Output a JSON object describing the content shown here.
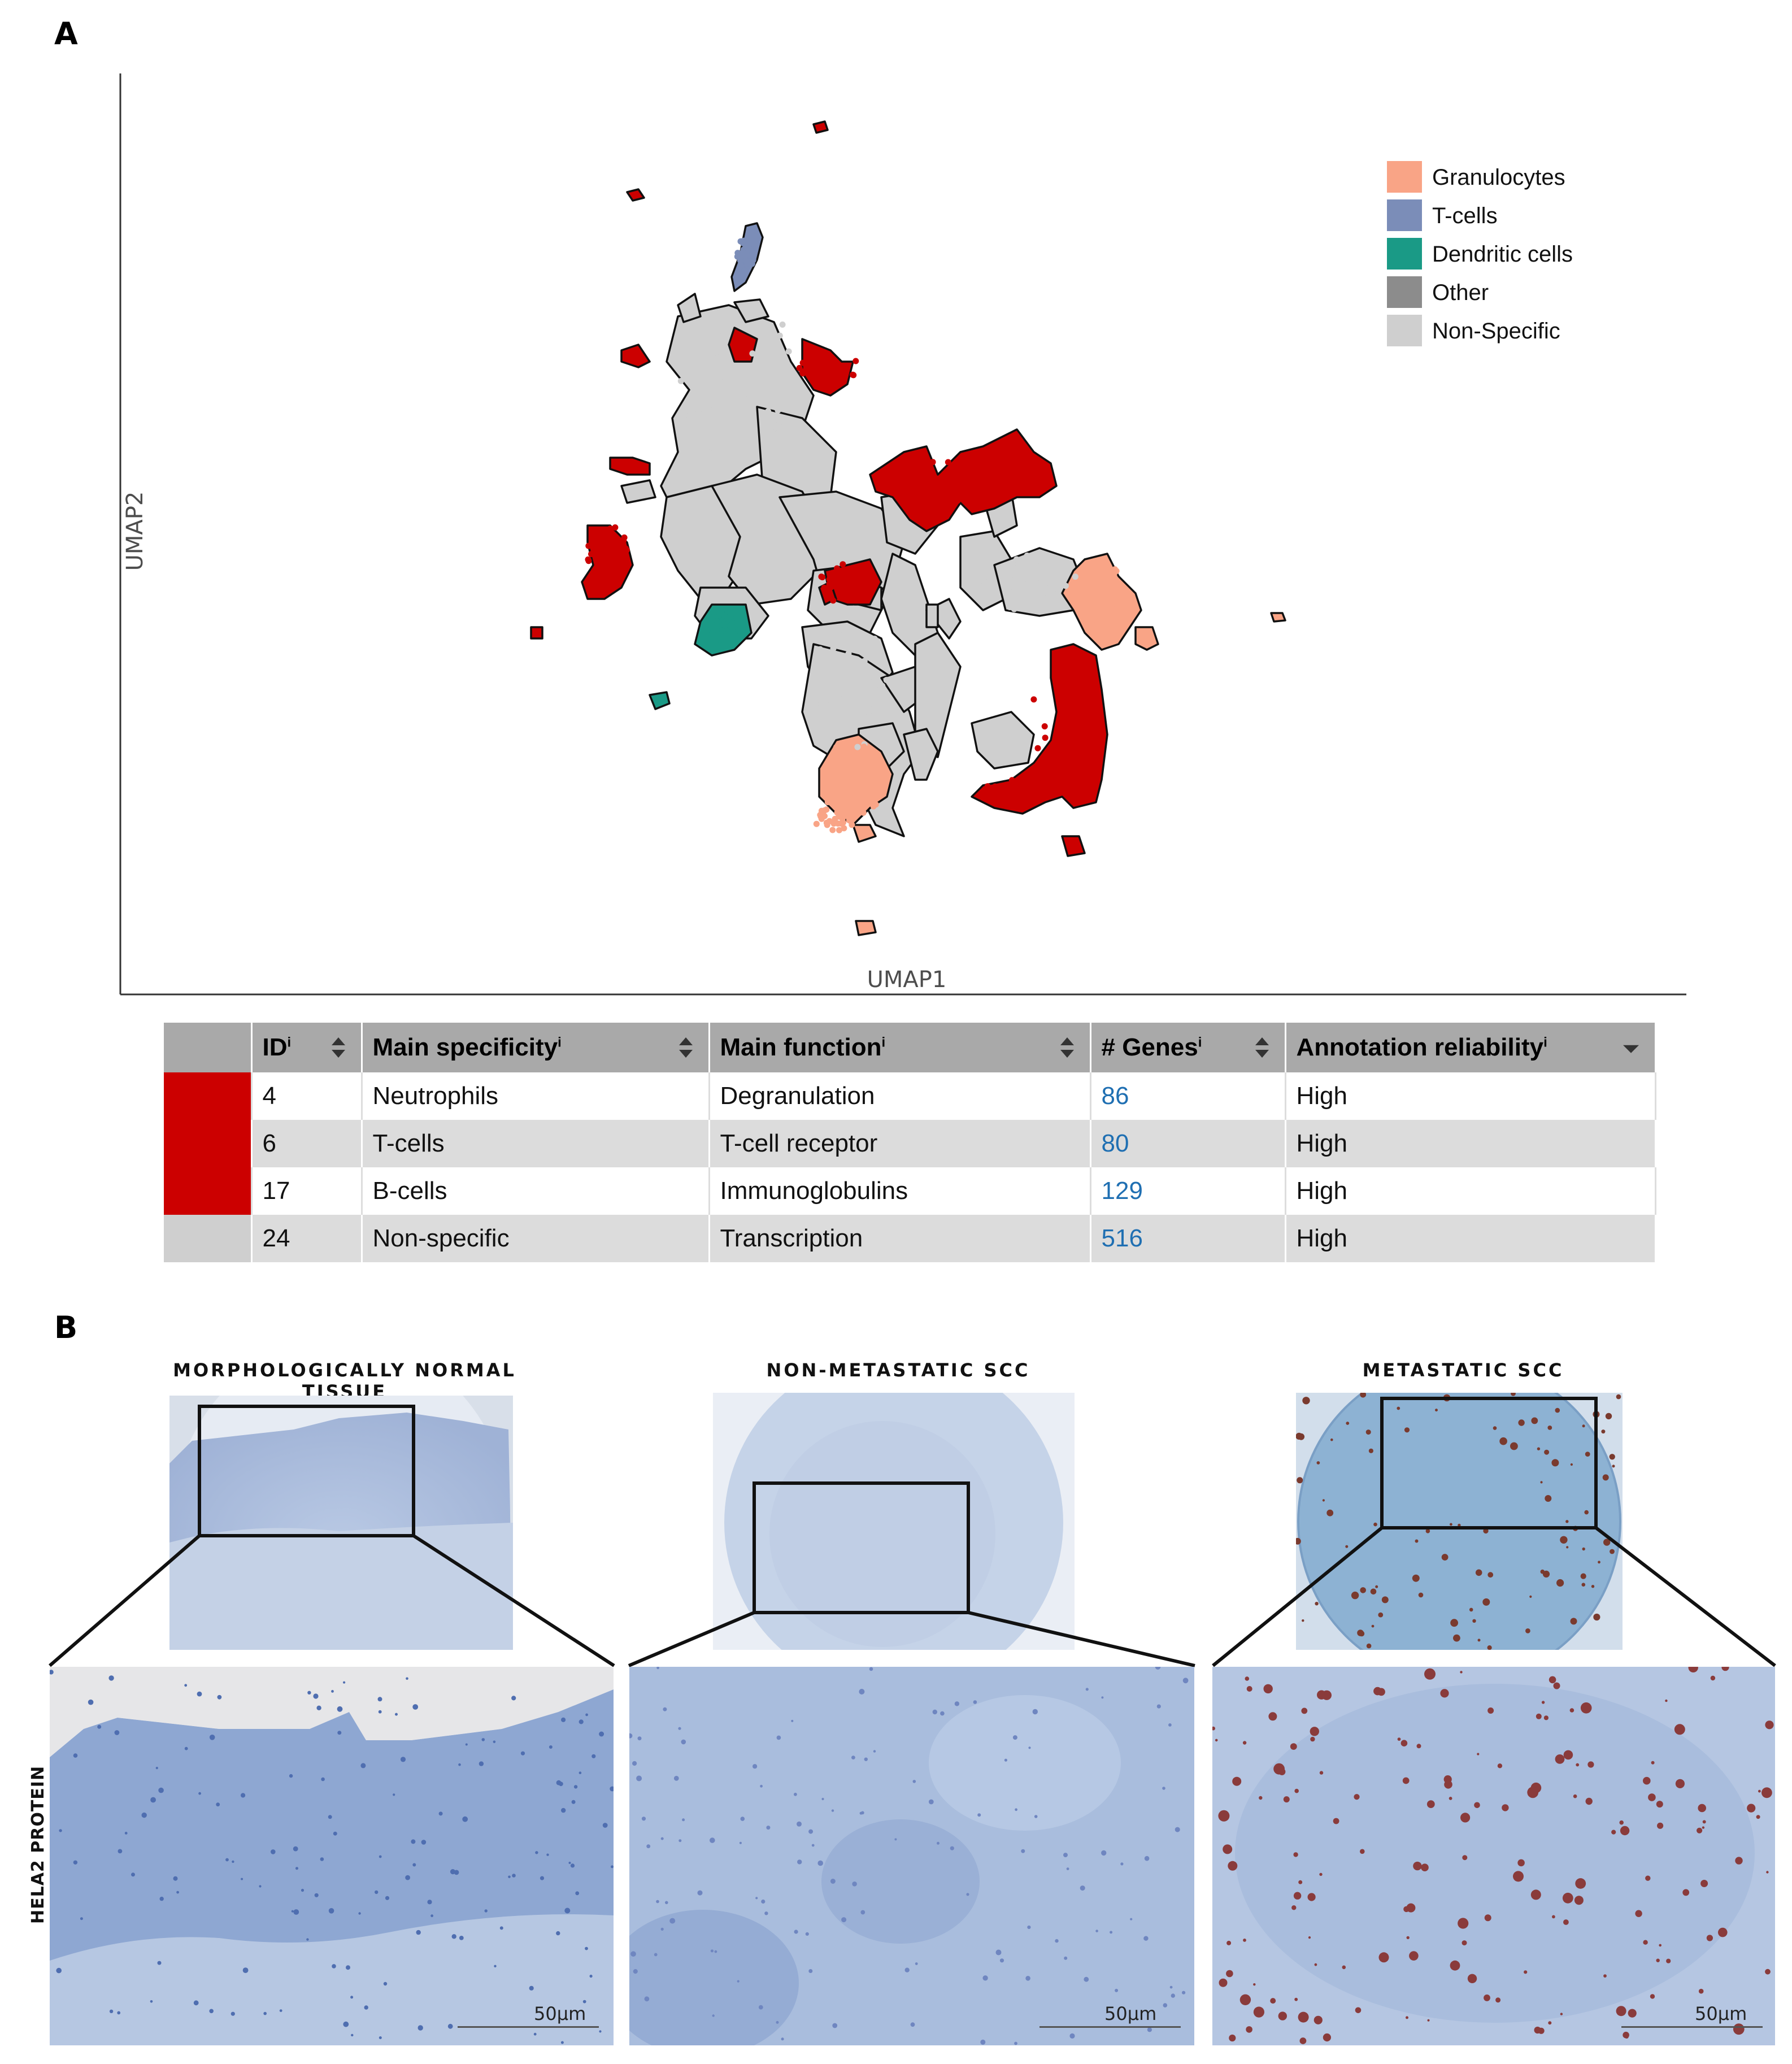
{
  "panel_a": {
    "letter": "A",
    "chart_data": {
      "type": "scatter",
      "title": "",
      "xlabel": "UMAP1",
      "ylabel": "UMAP2",
      "grid": false,
      "legend_position": "top-right",
      "legend": [
        {
          "label": "Granulocytes",
          "color": "#f9a486"
        },
        {
          "label": "T-cells",
          "color": "#7b8db8"
        },
        {
          "label": "Dendritic cells",
          "color": "#1a9a86"
        },
        {
          "label": "Other",
          "color": "#8c8c8c"
        },
        {
          "label": "Non-Specific",
          "color": "#cfcfcf"
        }
      ],
      "highlight_color": "#cc0000"
    }
  },
  "table": {
    "headers": [
      {
        "label": "ID",
        "sup": "i"
      },
      {
        "label": "Main specificity",
        "sup": "i"
      },
      {
        "label": "Main function",
        "sup": "i"
      },
      {
        "label": "# Genes",
        "sup": "i"
      },
      {
        "label": "Annotation reliability",
        "sup": "i"
      }
    ],
    "rows": [
      {
        "color": "#cc0000",
        "id": "4",
        "specificity": "Neutrophils",
        "function": "Degranulation",
        "genes": "86",
        "reliability": "High"
      },
      {
        "color": "#cc0000",
        "id": "6",
        "specificity": "T-cells",
        "function": "T-cell receptor",
        "genes": "80",
        "reliability": "High"
      },
      {
        "color": "#cc0000",
        "id": "17",
        "specificity": "B-cells",
        "function": "Immunoglobulins",
        "genes": "129",
        "reliability": "High"
      },
      {
        "color": "#cfcfcf",
        "id": "24",
        "specificity": "Non-specific",
        "function": "Transcription",
        "genes": "516",
        "reliability": "High"
      }
    ]
  },
  "panel_b": {
    "letter": "B",
    "row_label": "HELA2 PROTEIN",
    "columns": [
      {
        "title": "MORPHOLOGICALLY NORMAL TISSUE",
        "scale": "50µm"
      },
      {
        "title": "NON-METASTATIC SCC",
        "scale": "50µm"
      },
      {
        "title": "METASTATIC SCC",
        "scale": "50µm"
      }
    ]
  }
}
